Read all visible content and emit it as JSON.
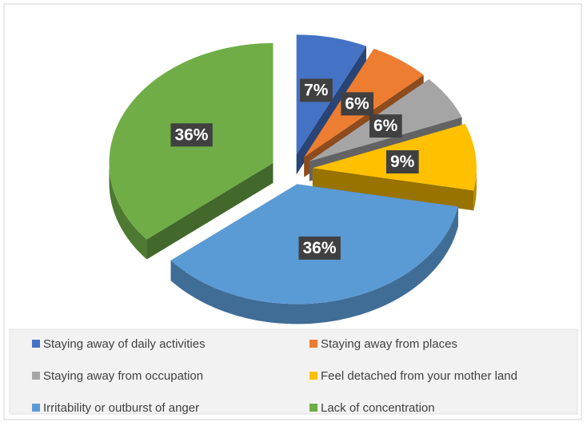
{
  "chart_data": {
    "type": "pie",
    "categories": [
      "Staying away of daily activities",
      "Staying away from places",
      "Staying away from occupation",
      "Feel detached from your mother land",
      "Irritability or outburst of anger",
      "Lack of concentration"
    ],
    "values": [
      7,
      6,
      6,
      9,
      36,
      36
    ],
    "value_labels": [
      "7%",
      "6%",
      "6%",
      "9%",
      "36%",
      "36%"
    ],
    "colors": [
      "#4472c4",
      "#ed7d31",
      "#a5a5a5",
      "#ffc000",
      "#5b9bd5",
      "#70ad47"
    ],
    "legend": "bottom"
  }
}
